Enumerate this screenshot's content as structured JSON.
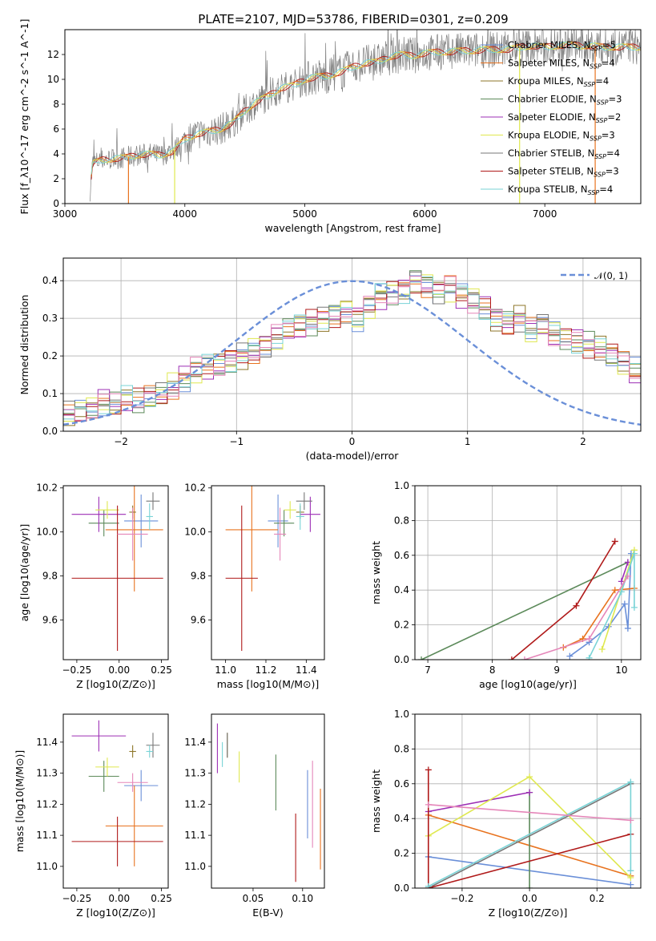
{
  "title": "PLATE=2107, MJD=53786, FIBERID=0301, z=0.209",
  "colors": {
    "Chabrier MILES": "#6a8fd8",
    "Salpeter MILES": "#e8731f",
    "Kroupa MILES": "#8d7628",
    "Chabrier ELODIE": "#5c8a5a",
    "Salpeter ELODIE": "#9d2fb5",
    "Kroupa ELODIE": "#dfe84f",
    "Chabrier STELIB": "#777777",
    "Salpeter STELIB": "#b01a1a",
    "Kroupa STELIB": "#78d3d6",
    "pink": "#e586b9"
  },
  "chart_data": [
    {
      "id": "spectrum",
      "type": "line",
      "xlabel": "wavelength [Angstrom, rest frame]",
      "ylabel": "Flux [f_λ10^-17 erg cm^-2 s^-1 A^-1]",
      "xlim": [
        3000,
        7800
      ],
      "ylim": [
        0,
        14
      ],
      "xticks": [
        "3000",
        "4000",
        "5000",
        "6000",
        "7000"
      ],
      "yticks": [
        "0",
        "2",
        "4",
        "6",
        "8",
        "10",
        "12"
      ],
      "legend_position": "right",
      "legend": [
        {
          "name": "Chabrier MILES",
          "nssp": "5"
        },
        {
          "name": "Salpeter MILES",
          "nssp": "4"
        },
        {
          "name": "Kroupa MILES",
          "nssp": "4"
        },
        {
          "name": "Chabrier ELODIE",
          "nssp": "3"
        },
        {
          "name": "Salpeter ELODIE",
          "nssp": "2"
        },
        {
          "name": "Kroupa ELODIE",
          "nssp": "3"
        },
        {
          "name": "Chabrier STELIB",
          "nssp": "4"
        },
        {
          "name": "Salpeter STELIB",
          "nssp": "3"
        },
        {
          "name": "Kroupa STELIB",
          "nssp": "4"
        }
      ],
      "continuum": [
        [
          3200,
          0
        ],
        [
          3230,
          3.2
        ],
        [
          3300,
          3.5
        ],
        [
          3400,
          3.6
        ],
        [
          3500,
          3.7
        ],
        [
          3600,
          3.9
        ],
        [
          3700,
          4.0
        ],
        [
          3800,
          3.9
        ],
        [
          3900,
          4.2
        ],
        [
          4000,
          5.2
        ],
        [
          4100,
          5.6
        ],
        [
          4200,
          5.8
        ],
        [
          4300,
          6.0
        ],
        [
          4400,
          6.5
        ],
        [
          4500,
          7.5
        ],
        [
          4600,
          8.2
        ],
        [
          4700,
          8.7
        ],
        [
          4800,
          9.3
        ],
        [
          4900,
          9.5
        ],
        [
          5000,
          10.0
        ],
        [
          5100,
          10.2
        ],
        [
          5200,
          10.3
        ],
        [
          5300,
          10.6
        ],
        [
          5400,
          11.0
        ],
        [
          5500,
          11.3
        ],
        [
          5600,
          11.4
        ],
        [
          5700,
          11.8
        ],
        [
          5800,
          12.0
        ],
        [
          5900,
          11.9
        ],
        [
          6000,
          12.1
        ],
        [
          6100,
          12.2
        ],
        [
          6200,
          12.2
        ],
        [
          6300,
          12.3
        ],
        [
          6400,
          12.3
        ],
        [
          6500,
          12.4
        ],
        [
          6600,
          12.4
        ],
        [
          6700,
          12.4
        ],
        [
          6800,
          12.6
        ],
        [
          6900,
          12.7
        ],
        [
          7000,
          12.6
        ],
        [
          7100,
          12.7
        ],
        [
          7200,
          12.8
        ],
        [
          7300,
          12.7
        ],
        [
          7400,
          12.7
        ],
        [
          7500,
          12.6
        ],
        [
          7600,
          12.6
        ],
        [
          7800,
          12.6
        ]
      ]
    },
    {
      "id": "residuals",
      "type": "line",
      "xlabel": "(data-model)/error",
      "ylabel": "Normed distribution",
      "xlim": [
        -2.5,
        2.5
      ],
      "ylim": [
        0,
        0.46
      ],
      "xticks": [
        "−2",
        "−1",
        "0",
        "1",
        "2"
      ],
      "yticks": [
        "0.0",
        "0.1",
        "0.2",
        "0.3",
        "0.4"
      ],
      "grid": true,
      "legend": "𝒩(0, 1)",
      "legend_position": "top-right",
      "bin_width": 0.1,
      "bin_start": -2.5,
      "values": [
        0.045,
        0.05,
        0.06,
        0.075,
        0.07,
        0.085,
        0.08,
        0.09,
        0.1,
        0.12,
        0.14,
        0.16,
        0.17,
        0.175,
        0.185,
        0.2,
        0.215,
        0.23,
        0.25,
        0.27,
        0.28,
        0.29,
        0.3,
        0.31,
        0.32,
        0.3,
        0.33,
        0.36,
        0.37,
        0.375,
        0.4,
        0.39,
        0.37,
        0.38,
        0.36,
        0.35,
        0.33,
        0.3,
        0.29,
        0.3,
        0.27,
        0.28,
        0.26,
        0.25,
        0.24,
        0.23,
        0.22,
        0.2,
        0.18,
        0.16,
        0.14,
        0.12,
        0.11,
        0.1,
        0.09,
        0.08,
        0.085,
        0.075,
        0.07,
        0.065,
        0.06,
        0.055,
        0.05,
        0.05
      ]
    },
    {
      "id": "age-vs-Z",
      "type": "scatter",
      "xlabel": "Z [log10(Z/Z⊙)]",
      "ylabel": "age  [log10(age/yr)]",
      "xlim": [
        -0.33,
        0.29
      ],
      "ylim": [
        9.42,
        10.21
      ],
      "xticks": [
        "−0.25",
        "0.00",
        "0.25"
      ],
      "yticks": [
        "9.6",
        "9.8",
        "10.0",
        "10.2"
      ],
      "points": [
        {
          "x": 0.13,
          "y": 10.05,
          "xerr": 0.1,
          "yerr": 0.12,
          "color": "Chabrier MILES"
        },
        {
          "x": 0.09,
          "y": 10.01,
          "xerr": 0.17,
          "yerr": 0.28,
          "color": "Salpeter MILES"
        },
        {
          "x": 0.08,
          "y": 10.09,
          "xerr": 0.02,
          "yerr": 0.03,
          "color": "Kroupa MILES"
        },
        {
          "x": -0.09,
          "y": 10.04,
          "xerr": 0.09,
          "yerr": 0.06,
          "color": "Chabrier ELODIE"
        },
        {
          "x": -0.12,
          "y": 10.08,
          "xerr": 0.16,
          "yerr": 0.08,
          "color": "Salpeter ELODIE"
        },
        {
          "x": -0.07,
          "y": 10.1,
          "xerr": 0.07,
          "yerr": 0.04,
          "color": "Kroupa ELODIE"
        },
        {
          "x": 0.2,
          "y": 10.14,
          "xerr": 0.04,
          "yerr": 0.04,
          "color": "Chabrier STELIB"
        },
        {
          "x": -0.01,
          "y": 9.79,
          "xerr": 0.27,
          "yerr": 0.33,
          "color": "Salpeter STELIB"
        },
        {
          "x": 0.18,
          "y": 10.07,
          "xerr": 0.02,
          "yerr": 0.06,
          "color": "Kroupa STELIB"
        },
        {
          "x": 0.08,
          "y": 9.99,
          "xerr": 0.09,
          "yerr": 0.12,
          "color": "pink"
        }
      ]
    },
    {
      "id": "age-vs-mass",
      "type": "scatter",
      "xlabel": "mass [log10(M/M⊙)]",
      "ylabel": "",
      "xlim": [
        10.93,
        11.49
      ],
      "ylim": [
        9.42,
        10.21
      ],
      "xticks": [
        "11.0",
        "11.2",
        "11.4"
      ],
      "yticks": [
        "9.6",
        "9.8",
        "10.0",
        "10.2"
      ],
      "points": [
        {
          "x": 11.26,
          "y": 10.05,
          "xerr": 0.05,
          "yerr": 0.12,
          "color": "Chabrier MILES"
        },
        {
          "x": 11.13,
          "y": 10.01,
          "xerr": 0.13,
          "yerr": 0.28,
          "color": "Salpeter MILES"
        },
        {
          "x": 11.37,
          "y": 10.09,
          "xerr": 0.02,
          "yerr": 0.03,
          "color": "Kroupa MILES"
        },
        {
          "x": 11.29,
          "y": 10.04,
          "xerr": 0.05,
          "yerr": 0.06,
          "color": "Chabrier ELODIE"
        },
        {
          "x": 11.42,
          "y": 10.08,
          "xerr": 0.05,
          "yerr": 0.08,
          "color": "Salpeter ELODIE"
        },
        {
          "x": 11.32,
          "y": 10.1,
          "xerr": 0.03,
          "yerr": 0.04,
          "color": "Kroupa ELODIE"
        },
        {
          "x": 11.39,
          "y": 10.14,
          "xerr": 0.04,
          "yerr": 0.04,
          "color": "Chabrier STELIB"
        },
        {
          "x": 11.08,
          "y": 9.79,
          "xerr": 0.08,
          "yerr": 0.33,
          "color": "Salpeter STELIB"
        },
        {
          "x": 11.37,
          "y": 10.07,
          "xerr": 0.02,
          "yerr": 0.06,
          "color": "Kroupa STELIB"
        },
        {
          "x": 11.27,
          "y": 9.99,
          "xerr": 0.03,
          "yerr": 0.12,
          "color": "pink"
        }
      ]
    },
    {
      "id": "weight-vs-age",
      "type": "line",
      "xlabel": "age  [log10(age/yr)]",
      "ylabel": "mass weight",
      "xlim": [
        6.8,
        10.3
      ],
      "ylim": [
        0,
        1
      ],
      "xticks": [
        "7",
        "8",
        "9",
        "10"
      ],
      "yticks": [
        "0.0",
        "0.2",
        "0.4",
        "0.6",
        "0.8",
        "1.0"
      ],
      "grid": true,
      "series": [
        {
          "color": "Chabrier MILES",
          "x": [
            9.2,
            9.5,
            9.8,
            10.05,
            10.1,
            10.15
          ],
          "y": [
            0.02,
            0.1,
            0.19,
            0.32,
            0.18,
            0.61
          ]
        },
        {
          "color": "Salpeter MILES",
          "x": [
            9.1,
            9.4,
            9.9,
            10.2
          ],
          "y": [
            0.07,
            0.12,
            0.4,
            0.41
          ]
        },
        {
          "color": "Chabrier ELODIE",
          "x": [
            6.9,
            10.1
          ],
          "y": [
            0.0,
            0.56
          ]
        },
        {
          "color": "Salpeter ELODIE",
          "x": [
            10.0,
            10.1
          ],
          "y": [
            0.45,
            0.56
          ]
        },
        {
          "color": "Kroupa ELODIE",
          "x": [
            9.7,
            10.2
          ],
          "y": [
            0.06,
            0.63
          ]
        },
        {
          "color": "Salpeter STELIB",
          "x": [
            8.3,
            9.3,
            9.9
          ],
          "y": [
            0.0,
            0.31,
            0.68
          ]
        },
        {
          "color": "Kroupa STELIB",
          "x": [
            9.5,
            10.0,
            10.2,
            10.2
          ],
          "y": [
            0.01,
            0.39,
            0.61,
            0.3
          ]
        },
        {
          "color": "pink",
          "x": [
            8.5,
            9.5,
            10.1
          ],
          "y": [
            0.0,
            0.12,
            0.48
          ]
        }
      ]
    },
    {
      "id": "mass-vs-Z",
      "type": "scatter",
      "xlabel": "Z [log10(Z/Z⊙)]",
      "ylabel": "mass [log10(M/M⊙)]",
      "xlim": [
        -0.33,
        0.29
      ],
      "ylim": [
        10.93,
        11.49
      ],
      "xticks": [
        "−0.25",
        "0.00",
        "0.25"
      ],
      "yticks": [
        "11.0",
        "11.1",
        "11.2",
        "11.3",
        "11.4"
      ],
      "points": [
        {
          "x": 0.13,
          "y": 11.26,
          "xerr": 0.1,
          "yerr": 0.05,
          "color": "Chabrier MILES"
        },
        {
          "x": 0.09,
          "y": 11.13,
          "xerr": 0.17,
          "yerr": 0.13,
          "color": "Salpeter MILES"
        },
        {
          "x": 0.08,
          "y": 11.37,
          "xerr": 0.02,
          "yerr": 0.02,
          "color": "Kroupa MILES"
        },
        {
          "x": -0.09,
          "y": 11.29,
          "xerr": 0.09,
          "yerr": 0.05,
          "color": "Chabrier ELODIE"
        },
        {
          "x": -0.12,
          "y": 11.42,
          "xerr": 0.16,
          "yerr": 0.05,
          "color": "Salpeter ELODIE"
        },
        {
          "x": -0.07,
          "y": 11.32,
          "xerr": 0.07,
          "yerr": 0.03,
          "color": "Kroupa ELODIE"
        },
        {
          "x": 0.2,
          "y": 11.39,
          "xerr": 0.04,
          "yerr": 0.04,
          "color": "Chabrier STELIB"
        },
        {
          "x": -0.01,
          "y": 11.08,
          "xerr": 0.27,
          "yerr": 0.08,
          "color": "Salpeter STELIB"
        },
        {
          "x": 0.18,
          "y": 11.37,
          "xerr": 0.02,
          "yerr": 0.02,
          "color": "Kroupa STELIB"
        },
        {
          "x": 0.08,
          "y": 11.27,
          "xerr": 0.09,
          "yerr": 0.03,
          "color": "pink"
        }
      ]
    },
    {
      "id": "mass-vs-ebv",
      "type": "scatter",
      "xlabel": "E(B-V)",
      "ylabel": "",
      "xlim": [
        0.008,
        0.122
      ],
      "ylim": [
        10.93,
        11.49
      ],
      "xticks": [
        "0.05",
        "0.10"
      ],
      "yticks": [
        "11.0",
        "11.1",
        "11.2",
        "11.3",
        "11.4"
      ],
      "points": [
        {
          "x": 0.105,
          "y": 11.2,
          "xerr": 0,
          "yerr": 0.11,
          "color": "Chabrier MILES"
        },
        {
          "x": 0.118,
          "y": 11.12,
          "xerr": 0,
          "yerr": 0.13,
          "color": "Salpeter MILES"
        },
        {
          "x": 0.024,
          "y": 11.39,
          "xerr": 0,
          "yerr": 0.04,
          "color": "Kroupa MILES"
        },
        {
          "x": 0.073,
          "y": 11.27,
          "xerr": 0,
          "yerr": 0.09,
          "color": "Chabrier ELODIE"
        },
        {
          "x": 0.014,
          "y": 11.38,
          "xerr": 0,
          "yerr": 0.08,
          "color": "Salpeter ELODIE"
        },
        {
          "x": 0.036,
          "y": 11.32,
          "xerr": 0,
          "yerr": 0.05,
          "color": "Kroupa ELODIE"
        },
        {
          "x": 0.024,
          "y": 11.39,
          "xerr": 0,
          "yerr": 0.04,
          "color": "Chabrier STELIB"
        },
        {
          "x": 0.093,
          "y": 11.06,
          "xerr": 0,
          "yerr": 0.11,
          "color": "Salpeter STELIB"
        },
        {
          "x": 0.019,
          "y": 11.36,
          "xerr": 0,
          "yerr": 0.04,
          "color": "Kroupa STELIB"
        },
        {
          "x": 0.11,
          "y": 11.2,
          "xerr": 0,
          "yerr": 0.14,
          "color": "pink"
        }
      ]
    },
    {
      "id": "weight-vs-Z",
      "type": "line",
      "xlabel": "Z [log10(Z/Z⊙)]",
      "ylabel": "mass weight",
      "xlim": [
        -0.34,
        0.33
      ],
      "ylim": [
        0,
        1
      ],
      "xticks": [
        "−0.2",
        "0.0",
        "0.2"
      ],
      "yticks": [
        "0.0",
        "0.2",
        "0.4",
        "0.6",
        "0.8",
        "1.0"
      ],
      "grid": true,
      "series": [
        {
          "color": "Chabrier MILES",
          "x": [
            -0.3,
            0.3
          ],
          "y": [
            0.18,
            0.02
          ]
        },
        {
          "color": "Salpeter MILES",
          "x": [
            -0.3,
            0.3
          ],
          "y": [
            0.42,
            0.07
          ]
        },
        {
          "color": "Chabrier ELODIE",
          "x": [
            0.0,
            0.0
          ],
          "y": [
            0.55,
            0.0
          ]
        },
        {
          "color": "Salpeter ELODIE",
          "x": [
            -0.3,
            0.0
          ],
          "y": [
            0.44,
            0.55
          ]
        },
        {
          "color": "Kroupa ELODIE",
          "x": [
            -0.3,
            0.0,
            0.3
          ],
          "y": [
            0.3,
            0.64,
            0.06
          ]
        },
        {
          "color": "Chabrier STELIB",
          "x": [
            -0.3,
            0.3
          ],
          "y": [
            0.0,
            0.6
          ]
        },
        {
          "color": "Salpeter STELIB",
          "x": [
            -0.3,
            -0.3,
            0.3
          ],
          "y": [
            0.68,
            0.0,
            0.31
          ]
        },
        {
          "color": "Kroupa STELIB",
          "x": [
            -0.3,
            0.3,
            0.3
          ],
          "y": [
            0.01,
            0.61,
            0.1
          ]
        },
        {
          "color": "pink",
          "x": [
            -0.3,
            0.3
          ],
          "y": [
            0.48,
            0.39
          ]
        }
      ]
    }
  ]
}
